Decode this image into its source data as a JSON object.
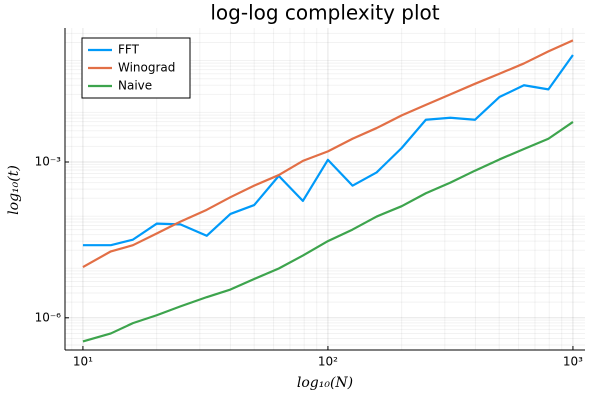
{
  "chart_data": {
    "type": "line",
    "title": "log-log complexity plot",
    "x_label": "log₁₀(N)",
    "y_label": "log₁₀(t)",
    "log_x": true,
    "log_y": true,
    "grid": true,
    "minor_grid": true,
    "legend_position": "top-left",
    "x": [
      10,
      13,
      16,
      20,
      25,
      32,
      40,
      50,
      63,
      79,
      100,
      126,
      158,
      200,
      251,
      316,
      398,
      501,
      631,
      794,
      1000
    ],
    "series": [
      {
        "name": "FFT",
        "color": "#009af9",
        "values": [
          2.5e-05,
          2.5e-05,
          3.2e-05,
          6.5e-05,
          6.3e-05,
          3.8e-05,
          0.0001,
          0.000148,
          0.00054,
          0.000178,
          0.0011,
          0.00035,
          0.00063,
          0.00186,
          0.0065,
          0.0071,
          0.0065,
          0.0178,
          0.03,
          0.025,
          0.115
        ]
      },
      {
        "name": "Winograd",
        "color": "#e26f46",
        "values": [
          9.5e-06,
          1.9e-05,
          2.5e-05,
          4.2e-05,
          7.1e-05,
          0.00012,
          0.00021,
          0.00035,
          0.00056,
          0.00105,
          0.0016,
          0.0028,
          0.0045,
          0.0079,
          0.0126,
          0.02,
          0.032,
          0.05,
          0.079,
          0.135,
          0.22
        ]
      },
      {
        "name": "Naive",
        "color": "#3da44d",
        "values": [
          3.5e-07,
          5e-07,
          7.9e-07,
          1.12e-06,
          1.66e-06,
          2.5e-06,
          3.5e-06,
          5.6e-06,
          8.9e-06,
          1.58e-05,
          3e-05,
          5e-05,
          8.9e-05,
          0.000141,
          0.00025,
          0.0004,
          0.00068,
          0.00112,
          0.00178,
          0.0028,
          0.0059
        ]
      }
    ],
    "xlim": [
      8.45,
      1120
    ],
    "ylim": [
      2.4e-07,
      0.38
    ],
    "xticks": [
      {
        "value": 10,
        "label": "10¹"
      },
      {
        "value": 100,
        "label": "10²"
      },
      {
        "value": 1000,
        "label": "10³"
      }
    ],
    "yticks": [
      {
        "value": 1e-06,
        "label": "10⁻⁶"
      },
      {
        "value": 0.001,
        "label": "10⁻³"
      }
    ]
  }
}
